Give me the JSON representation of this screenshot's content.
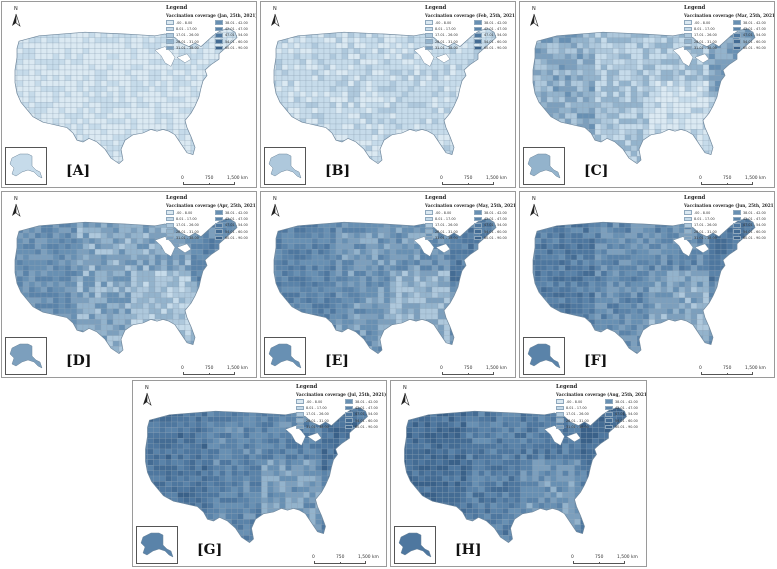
{
  "legend_title": "Legend",
  "north_label": "N",
  "scale_labels": [
    "0",
    "750",
    "1,500 km"
  ],
  "colors": {
    "classes": [
      "#dbe9f2",
      "#c6dbea",
      "#aec8dc",
      "#93b3cc",
      "#7c9fbd",
      "#6890b3",
      "#5a83a9",
      "#4e779f",
      "#446c94",
      "#3a6189"
    ],
    "outline": "#8aa0b4"
  },
  "legend_classes": [
    ".00 - 8.00",
    "38.01 - 42.00",
    "8.01 - 17.00",
    "42.01 - 47.00",
    "17.01 - 26.00",
    "47.01 - 54.00",
    "26.01 - 31.00",
    "54.01 - 60.00",
    "31.01 - 38.00",
    "60.01 - 90.00"
  ],
  "panels": [
    {
      "label": "[A]",
      "subtitle": "Vaccination coverage (Jan, 25th, 2021)",
      "level": 0.4
    },
    {
      "label": "[B]",
      "subtitle": "Vaccination coverage (Feb, 25th, 2021)",
      "level": 0.9
    },
    {
      "label": "[C]",
      "subtitle": "Vaccination coverage (Mar, 25th, 2021)",
      "level": 2.0
    },
    {
      "label": "[D]",
      "subtitle": "Vaccination coverage (Apr, 25th, 2021)",
      "level": 3.6
    },
    {
      "label": "[E]",
      "subtitle": "Vaccination coverage (May, 25th, 2021)",
      "level": 4.6
    },
    {
      "label": "[F]",
      "subtitle": "Vaccination coverage (Jun, 25th, 2021)",
      "level": 5.2
    },
    {
      "label": "[G]",
      "subtitle": "Vaccination coverage (Jul, 25th, 2021)",
      "level": 5.8
    },
    {
      "label": "[H]",
      "subtitle": "Vaccination coverage (Aug, 25th, 2021)",
      "level": 6.4
    }
  ]
}
